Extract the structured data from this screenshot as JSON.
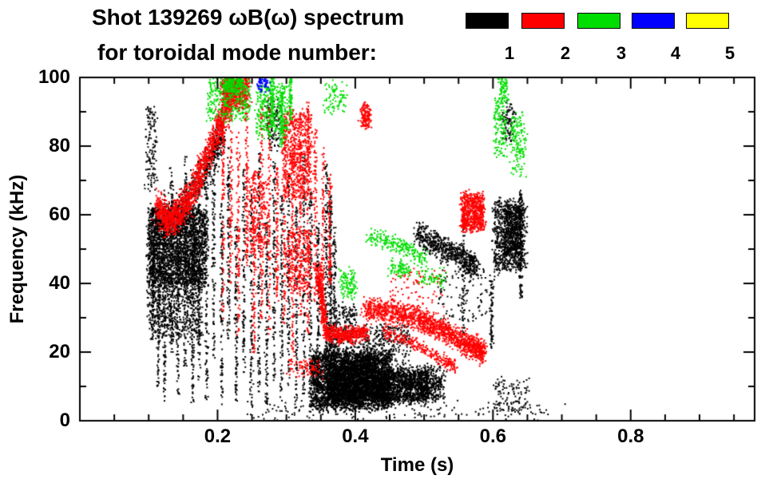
{
  "chart_data": {
    "type": "scatter",
    "title": "Shot 139269 ωB(ω) spectrum",
    "subtitle": "for toroidal mode number:",
    "xlabel": "Time (s)",
    "ylabel": "Frequency (kHz)",
    "xlim": [
      0.0,
      0.98
    ],
    "ylim": [
      0,
      100
    ],
    "xticks": [
      0.2,
      0.4,
      0.6,
      0.8
    ],
    "xtick_labels": [
      "0.2",
      "0.4",
      "0.6",
      "0.8"
    ],
    "x_major_step": 0.2,
    "x_minor_step": 0.05,
    "yticks": [
      0,
      20,
      40,
      60,
      80,
      100
    ],
    "ytick_labels": [
      "0",
      "20",
      "40",
      "60",
      "80",
      "100"
    ],
    "y_major_step": 20,
    "y_minor_step": 10,
    "grid": false,
    "legend_position": "top-right",
    "legend": [
      {
        "mode": "1",
        "color": "#000000"
      },
      {
        "mode": "2",
        "color": "#ff0000"
      },
      {
        "mode": "3",
        "color": "#00dd00"
      },
      {
        "mode": "4",
        "color": "#0000ff"
      },
      {
        "mode": "5",
        "color": "#ffff00"
      }
    ],
    "seed": 20139269,
    "features": [
      {
        "mode": "1",
        "kind": "blob",
        "t": [
          0.098,
          0.182
        ],
        "f": [
          40,
          62
        ],
        "n": 2600
      },
      {
        "mode": "1",
        "kind": "blob",
        "t": [
          0.1,
          0.175
        ],
        "f": [
          24,
          42
        ],
        "n": 650
      },
      {
        "mode": "1",
        "kind": "cloud",
        "pts": [
          [
            0.115,
            58
          ],
          [
            0.15,
            64
          ],
          [
            0.175,
            70
          ],
          [
            0.195,
            78
          ],
          [
            0.205,
            84
          ]
        ],
        "st": 0.004,
        "sf": 2.5,
        "n": 500
      },
      {
        "mode": "1",
        "kind": "blob",
        "t": [
          0.096,
          0.11
        ],
        "f": [
          68,
          92
        ],
        "n": 130
      },
      {
        "mode": "1",
        "kind": "vlines",
        "st": 0.0012,
        "n": 110,
        "lines": [
          [
            0.105,
            25,
            62
          ],
          [
            0.113,
            10,
            55
          ],
          [
            0.122,
            6,
            68
          ],
          [
            0.132,
            20,
            74
          ],
          [
            0.141,
            8,
            60
          ],
          [
            0.152,
            15,
            78
          ],
          [
            0.163,
            5,
            58
          ],
          [
            0.172,
            12,
            68
          ],
          [
            0.183,
            6,
            76
          ],
          [
            0.193,
            18,
            84
          ],
          [
            0.205,
            5,
            64
          ],
          [
            0.215,
            24,
            80
          ],
          [
            0.226,
            6,
            58
          ],
          [
            0.237,
            14,
            74
          ],
          [
            0.248,
            4,
            68
          ],
          [
            0.27,
            5,
            58
          ],
          [
            0.259,
            8,
            80
          ],
          [
            0.281,
            12,
            76
          ],
          [
            0.292,
            6,
            66
          ],
          [
            0.302,
            10,
            73
          ],
          [
            0.313,
            4,
            63
          ],
          [
            0.324,
            8,
            78
          ],
          [
            0.334,
            5,
            68
          ],
          [
            0.345,
            10,
            58
          ]
        ]
      },
      {
        "mode": "1",
        "kind": "vlines",
        "st": 0.0012,
        "n": 130,
        "lines": [
          [
            0.357,
            8,
            75
          ],
          [
            0.363,
            22,
            66
          ],
          [
            0.369,
            4,
            58
          ]
        ]
      },
      {
        "mode": "1",
        "kind": "blob",
        "t": [
          0.335,
          0.45
        ],
        "f": [
          4,
          20
        ],
        "n": 3200
      },
      {
        "mode": "1",
        "kind": "blob",
        "t": [
          0.36,
          0.43
        ],
        "f": [
          6,
          17
        ],
        "n": 1800
      },
      {
        "mode": "1",
        "kind": "blob",
        "t": [
          0.43,
          0.505
        ],
        "f": [
          6,
          15
        ],
        "n": 1400
      },
      {
        "mode": "1",
        "kind": "cloud",
        "pts": [
          [
            0.5,
            11
          ],
          [
            0.525,
            10
          ]
        ],
        "st": 0.006,
        "sf": 2.5,
        "n": 250
      },
      {
        "mode": "1",
        "kind": "blob",
        "t": [
          0.355,
          0.4
        ],
        "f": [
          20,
          34
        ],
        "n": 260
      },
      {
        "mode": "1",
        "kind": "blob",
        "t": [
          0.4,
          0.48
        ],
        "f": [
          18,
          28
        ],
        "n": 300
      },
      {
        "mode": "1",
        "kind": "cloud",
        "pts": [
          [
            0.488,
            55
          ],
          [
            0.52,
            51
          ],
          [
            0.55,
            48
          ],
          [
            0.575,
            45
          ]
        ],
        "st": 0.003,
        "sf": 1.8,
        "n": 650
      },
      {
        "mode": "1",
        "kind": "blob",
        "t": [
          0.6,
          0.645
        ],
        "f": [
          44,
          64
        ],
        "n": 800
      },
      {
        "mode": "1",
        "kind": "blob",
        "t": [
          0.615,
          0.64
        ],
        "f": [
          48,
          62
        ],
        "n": 400
      },
      {
        "mode": "1",
        "kind": "vlines",
        "st": 0.0012,
        "n": 120,
        "lines": [
          [
            0.639,
            36,
            68
          ]
        ]
      },
      {
        "mode": "1",
        "kind": "blob",
        "t": [
          0.612,
          0.63
        ],
        "f": [
          82,
          92
        ],
        "n": 90
      },
      {
        "mode": "1",
        "kind": "blob",
        "t": [
          0.52,
          0.6
        ],
        "f": [
          30,
          45
        ],
        "n": 120
      },
      {
        "mode": "1",
        "kind": "vlines",
        "st": 0.0012,
        "n": 70,
        "lines": [
          [
            0.556,
            22,
            60
          ],
          [
            0.597,
            20,
            42
          ]
        ]
      },
      {
        "mode": "1",
        "kind": "blob",
        "t": [
          0.24,
          0.7
        ],
        "f": [
          1,
          5
        ],
        "n": 170
      },
      {
        "mode": "1",
        "kind": "blob",
        "t": [
          0.6,
          0.65
        ],
        "f": [
          3,
          12
        ],
        "n": 110
      },
      {
        "mode": "1",
        "kind": "blob",
        "t": [
          0.268,
          0.29
        ],
        "f": [
          80,
          93
        ],
        "n": 120
      },
      {
        "mode": "2",
        "kind": "cloud",
        "pts": [
          [
            0.112,
            63
          ],
          [
            0.125,
            58
          ],
          [
            0.14,
            60
          ],
          [
            0.16,
            66
          ],
          [
            0.18,
            75
          ],
          [
            0.2,
            85
          ],
          [
            0.215,
            93
          ],
          [
            0.228,
            100
          ]
        ],
        "st": 0.0035,
        "sf": 2.2,
        "n": 1600
      },
      {
        "mode": "2",
        "kind": "blob",
        "t": [
          0.205,
          0.245
        ],
        "f": [
          92,
          100
        ],
        "n": 550
      },
      {
        "mode": "2",
        "kind": "vlines",
        "st": 0.0012,
        "n": 100,
        "lines": [
          [
            0.207,
            30,
            88
          ],
          [
            0.218,
            40,
            95
          ],
          [
            0.229,
            25,
            85
          ],
          [
            0.241,
            45,
            90
          ],
          [
            0.252,
            20,
            60
          ],
          [
            0.263,
            30,
            92
          ],
          [
            0.274,
            25,
            95
          ],
          [
            0.285,
            35,
            75
          ],
          [
            0.296,
            28,
            88
          ],
          [
            0.308,
            20,
            78
          ],
          [
            0.319,
            30,
            90
          ],
          [
            0.33,
            25,
            93
          ],
          [
            0.341,
            35,
            85
          ],
          [
            0.352,
            28,
            80
          ],
          [
            0.362,
            40,
            72
          ]
        ]
      },
      {
        "mode": "2",
        "kind": "blob",
        "t": [
          0.295,
          0.335
        ],
        "f": [
          65,
          90
        ],
        "n": 650
      },
      {
        "mode": "2",
        "kind": "blob",
        "t": [
          0.3,
          0.335
        ],
        "f": [
          38,
          56
        ],
        "n": 300
      },
      {
        "mode": "2",
        "kind": "blob",
        "t": [
          0.245,
          0.27
        ],
        "f": [
          50,
          72
        ],
        "n": 240
      },
      {
        "mode": "2",
        "kind": "cloud",
        "pts": [
          [
            0.345,
            44
          ],
          [
            0.35,
            35
          ],
          [
            0.356,
            27
          ]
        ],
        "st": 0.002,
        "sf": 2.0,
        "n": 300
      },
      {
        "mode": "2",
        "kind": "cloud",
        "pts": [
          [
            0.356,
            26
          ],
          [
            0.385,
            25
          ],
          [
            0.415,
            26
          ]
        ],
        "st": 0.003,
        "sf": 1.2,
        "n": 450
      },
      {
        "mode": "2",
        "kind": "cloud",
        "pts": [
          [
            0.413,
            33
          ],
          [
            0.45,
            32
          ],
          [
            0.49,
            30
          ],
          [
            0.52,
            27.5
          ],
          [
            0.55,
            24
          ],
          [
            0.572,
            21.5
          ],
          [
            0.585,
            20
          ]
        ],
        "st": 0.003,
        "sf": 1.6,
        "n": 1500
      },
      {
        "mode": "2",
        "kind": "cloud",
        "pts": [
          [
            0.44,
            26
          ],
          [
            0.47,
            24
          ],
          [
            0.5,
            21
          ],
          [
            0.53,
            17.5
          ],
          [
            0.545,
            16
          ]
        ],
        "st": 0.002,
        "sf": 0.9,
        "n": 280
      },
      {
        "mode": "2",
        "kind": "blob",
        "t": [
          0.553,
          0.585
        ],
        "f": [
          56,
          66
        ],
        "n": 650
      },
      {
        "mode": "2",
        "kind": "blob",
        "t": [
          0.408,
          0.42
        ],
        "f": [
          86,
          92
        ],
        "n": 140
      },
      {
        "mode": "2",
        "kind": "blob",
        "t": [
          0.45,
          0.53
        ],
        "f": [
          34,
          44
        ],
        "n": 90
      },
      {
        "mode": "2",
        "kind": "blob",
        "t": [
          0.3,
          0.35
        ],
        "f": [
          13,
          18
        ],
        "n": 90
      },
      {
        "mode": "3",
        "kind": "blob",
        "t": [
          0.185,
          0.245
        ],
        "f": [
          88,
          100
        ],
        "n": 320
      },
      {
        "mode": "3",
        "kind": "blob",
        "t": [
          0.255,
          0.3
        ],
        "f": [
          83,
          98
        ],
        "n": 340
      },
      {
        "mode": "3",
        "kind": "vlines",
        "st": 0.0012,
        "n": 80,
        "lines": [
          [
            0.278,
            86,
            100
          ],
          [
            0.292,
            80,
            96
          ],
          [
            0.305,
            88,
            100
          ]
        ]
      },
      {
        "mode": "3",
        "kind": "blob",
        "t": [
          0.21,
          0.235
        ],
        "f": [
          96,
          100
        ],
        "n": 160
      },
      {
        "mode": "3",
        "kind": "cloud",
        "pts": [
          [
            0.418,
            54
          ],
          [
            0.45,
            52
          ],
          [
            0.475,
            50
          ],
          [
            0.502,
            47
          ]
        ],
        "st": 0.004,
        "sf": 1.2,
        "n": 220
      },
      {
        "mode": "3",
        "kind": "blob",
        "t": [
          0.45,
          0.475
        ],
        "f": [
          43,
          46
        ],
        "n": 80
      },
      {
        "mode": "3",
        "kind": "blob",
        "t": [
          0.602,
          0.618
        ],
        "f": [
          78,
          95
        ],
        "n": 150
      },
      {
        "mode": "3",
        "kind": "blob",
        "t": [
          0.625,
          0.645
        ],
        "f": [
          72,
          90
        ],
        "n": 150
      },
      {
        "mode": "3",
        "kind": "blob",
        "t": [
          0.608,
          0.62
        ],
        "f": [
          95,
          100
        ],
        "n": 60
      },
      {
        "mode": "3",
        "kind": "blob",
        "t": [
          0.378,
          0.4
        ],
        "f": [
          36,
          44
        ],
        "n": 110
      },
      {
        "mode": "3",
        "kind": "blob",
        "t": [
          0.355,
          0.385
        ],
        "f": [
          90,
          98
        ],
        "n": 80
      },
      {
        "mode": "3",
        "kind": "blob",
        "t": [
          0.49,
          0.53
        ],
        "f": [
          40,
          44
        ],
        "n": 60
      },
      {
        "mode": "4",
        "kind": "blob",
        "t": [
          0.258,
          0.272
        ],
        "f": [
          97,
          100
        ],
        "n": 60
      }
    ]
  }
}
